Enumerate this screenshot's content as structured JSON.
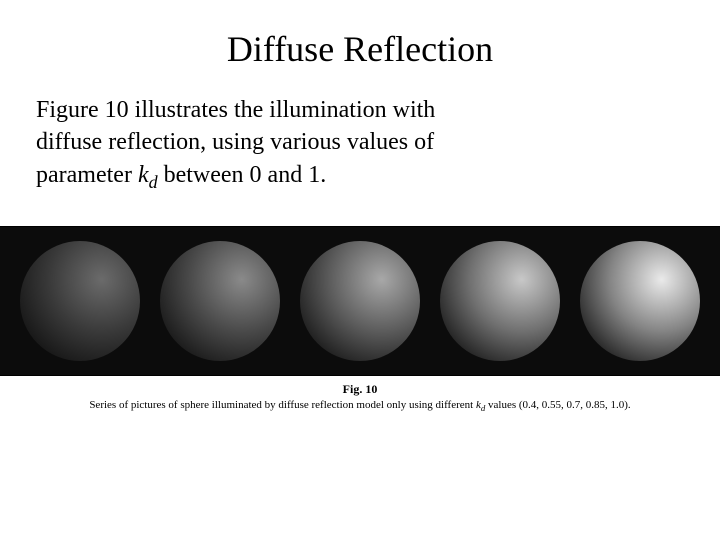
{
  "title": "Diffuse Reflection",
  "body": {
    "line1": "Figure 10 illustrates the illumination with",
    "line2": "diffuse reflection, using various values of",
    "line3_pre": "parameter ",
    "line3_var": "k",
    "line3_sub": "d",
    "line3_post": " between 0 and 1."
  },
  "figure": {
    "background": "#0c0c0c",
    "light_dir": "top-right",
    "spheres": [
      {
        "kd": 0.4,
        "highlight": "#6b6b6b",
        "mid": "#3a3a3a",
        "shadow": "#121212"
      },
      {
        "kd": 0.55,
        "highlight": "#8a8a8a",
        "mid": "#4a4a4a",
        "shadow": "#141414"
      },
      {
        "kd": 0.7,
        "highlight": "#a8a8a8",
        "mid": "#5c5c5c",
        "shadow": "#161616"
      },
      {
        "kd": 0.85,
        "highlight": "#c8c8c8",
        "mid": "#707070",
        "shadow": "#181818"
      },
      {
        "kd": 1.0,
        "highlight": "#eaeaea",
        "mid": "#848484",
        "shadow": "#1a1a1a"
      }
    ]
  },
  "caption": {
    "label": "Fig. 10",
    "text_pre": "Series of pictures of sphere illuminated by diffuse reflection model only using different ",
    "var": "k",
    "sub": "d",
    "text_post": " values (0.4, 0.55, 0.7, 0.85, 1.0)."
  }
}
